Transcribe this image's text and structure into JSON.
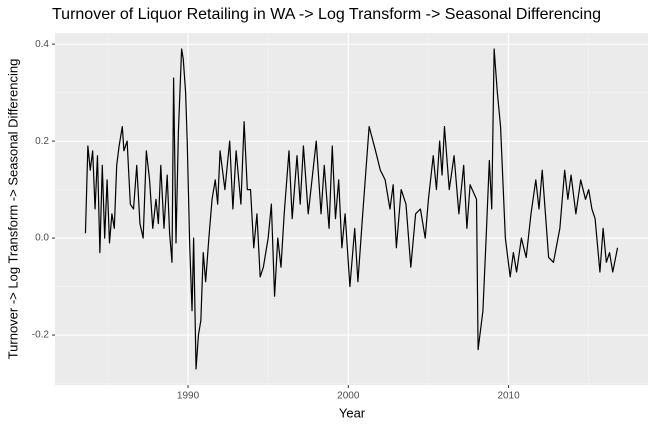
{
  "chart_data": {
    "type": "line",
    "title": "Turnover of Liquor Retailing in WA -> Log Transform -> Seasonal Differencing",
    "x_label": "Year",
    "y_label": "Turnover -> Log Transform -> Seasonal Differencing",
    "xlim": [
      1981.7,
      2018.7
    ],
    "ylim": [
      -0.303,
      0.423
    ],
    "xticks": [
      1990,
      2000,
      2010
    ],
    "yticks": [
      -0.2,
      {
        "value": 0,
        "label": "0.0"
      },
      0.2,
      0.4
    ],
    "grid": true,
    "x": [
      1983.6,
      1983.75,
      1983.9,
      1984.05,
      1984.2,
      1984.35,
      1984.5,
      1984.65,
      1984.8,
      1984.95,
      1985.1,
      1985.25,
      1985.4,
      1985.55,
      1985.7,
      1985.9,
      1986.0,
      1986.2,
      1986.4,
      1986.6,
      1986.8,
      1987.0,
      1987.2,
      1987.4,
      1987.6,
      1987.8,
      1988.0,
      1988.15,
      1988.3,
      1988.5,
      1988.7,
      1988.85,
      1989.0,
      1989.1,
      1989.25,
      1989.4,
      1989.6,
      1989.7,
      1989.85,
      1989.95,
      1990.1,
      1990.25,
      1990.35,
      1990.5,
      1990.65,
      1990.8,
      1990.95,
      1991.1,
      1991.3,
      1991.5,
      1991.7,
      1991.85,
      1992.0,
      1992.3,
      1992.6,
      1992.8,
      1993.0,
      1993.3,
      1993.5,
      1993.7,
      1993.9,
      1994.1,
      1994.3,
      1994.5,
      1994.7,
      1995.0,
      1995.2,
      1995.4,
      1995.6,
      1995.8,
      1996.0,
      1996.3,
      1996.5,
      1996.8,
      1997.0,
      1997.2,
      1997.5,
      1997.8,
      1998.0,
      1998.3,
      1998.5,
      1998.8,
      1999.0,
      1999.2,
      1999.4,
      1999.6,
      1999.8,
      2000.1,
      2000.4,
      2000.6,
      2000.9,
      2001.3,
      2001.7,
      2002.0,
      2002.3,
      2002.6,
      2002.8,
      2003.0,
      2003.3,
      2003.6,
      2003.9,
      2004.2,
      2004.5,
      2004.8,
      2005.0,
      2005.3,
      2005.5,
      2005.7,
      2005.85,
      2006.0,
      2006.3,
      2006.6,
      2006.9,
      2007.2,
      2007.4,
      2007.6,
      2008.0,
      2008.1,
      2008.4,
      2008.6,
      2008.8,
      2008.95,
      2009.1,
      2009.3,
      2009.5,
      2009.8,
      2010.1,
      2010.3,
      2010.5,
      2010.8,
      2011.1,
      2011.4,
      2011.7,
      2011.9,
      2012.1,
      2012.5,
      2012.8,
      2013.2,
      2013.5,
      2013.7,
      2013.9,
      2014.2,
      2014.5,
      2014.8,
      2015.0,
      2015.2,
      2015.4,
      2015.7,
      2015.9,
      2016.1,
      2016.3,
      2016.5,
      2016.8
    ],
    "series": [
      {
        "name": "Turnover",
        "color": "#000000",
        "values": [
          0.01,
          0.19,
          0.14,
          0.18,
          0.06,
          0.17,
          -0.03,
          0.15,
          0.0,
          0.12,
          -0.01,
          0.05,
          0.02,
          0.15,
          0.19,
          0.23,
          0.18,
          0.2,
          0.07,
          0.06,
          0.15,
          0.03,
          0.0,
          0.18,
          0.12,
          0.02,
          0.08,
          0.03,
          0.15,
          0.02,
          0.13,
          0.01,
          -0.05,
          0.33,
          -0.01,
          0.22,
          0.39,
          0.37,
          0.3,
          0.2,
          -0.01,
          -0.15,
          0.0,
          -0.27,
          -0.2,
          -0.17,
          -0.03,
          -0.09,
          0.0,
          0.08,
          0.12,
          0.07,
          0.18,
          0.1,
          0.2,
          0.06,
          0.18,
          0.07,
          0.24,
          0.1,
          0.1,
          -0.02,
          0.05,
          -0.08,
          -0.06,
          0.0,
          0.07,
          -0.12,
          0.0,
          -0.06,
          0.05,
          0.18,
          0.04,
          0.17,
          0.07,
          0.19,
          0.05,
          0.14,
          0.2,
          0.05,
          0.15,
          0.02,
          0.19,
          0.04,
          0.12,
          -0.02,
          0.05,
          -0.1,
          0.02,
          -0.09,
          0.05,
          0.23,
          0.18,
          0.14,
          0.12,
          0.06,
          0.11,
          -0.02,
          0.1,
          0.07,
          -0.06,
          0.05,
          0.06,
          0.0,
          0.08,
          0.17,
          0.1,
          0.2,
          0.13,
          0.23,
          0.1,
          0.17,
          0.05,
          0.15,
          0.02,
          0.11,
          0.08,
          -0.23,
          -0.15,
          0.0,
          0.16,
          0.06,
          0.39,
          0.3,
          0.23,
          0.0,
          -0.08,
          -0.03,
          -0.07,
          0.0,
          -0.04,
          0.05,
          0.12,
          0.06,
          0.14,
          -0.04,
          -0.05,
          0.02,
          0.14,
          0.08,
          0.13,
          0.05,
          0.12,
          0.08,
          0.1,
          0.06,
          0.04,
          -0.07,
          0.02,
          -0.05,
          -0.03,
          -0.07,
          -0.02
        ]
      }
    ]
  }
}
